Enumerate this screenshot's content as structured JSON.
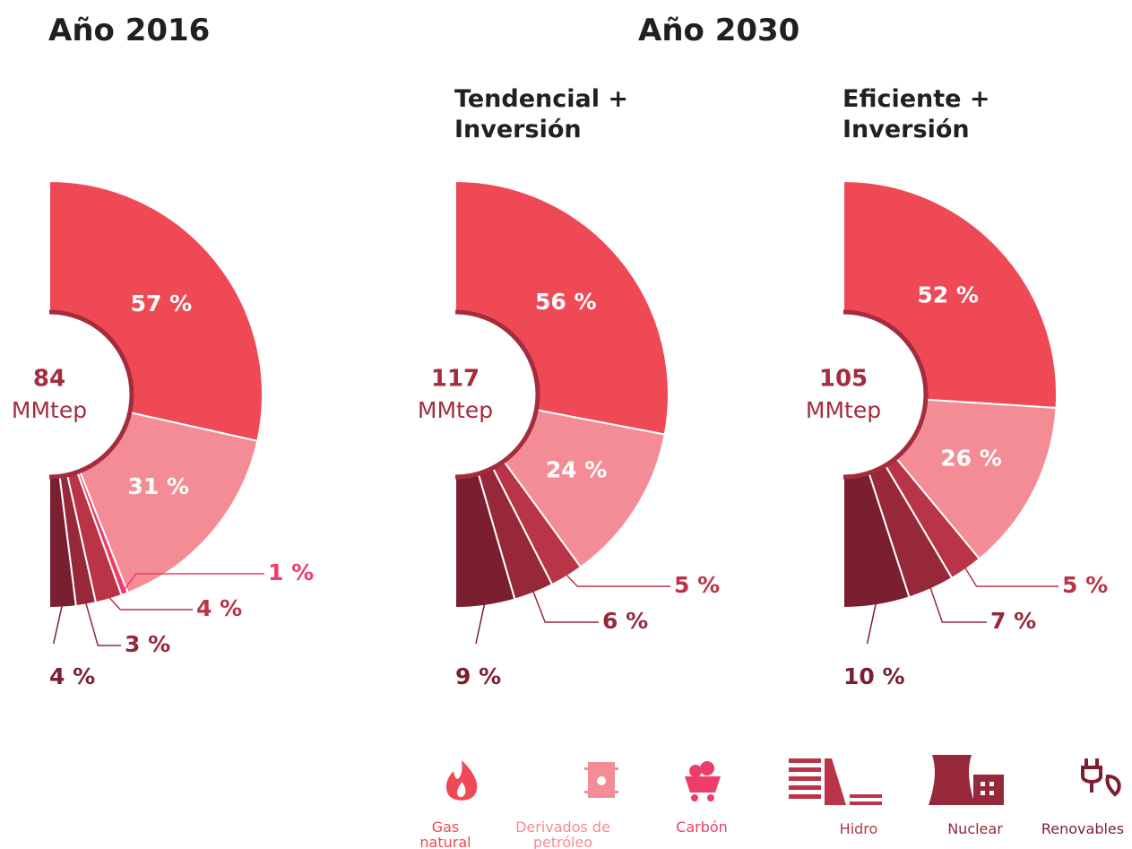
{
  "headings": [
    "Año 2016",
    "Año 2030"
  ],
  "legend": [
    {
      "label": "Gas natural",
      "color": "#ef4955"
    },
    {
      "label": "Derivados de petróleo",
      "color": "#f48c95"
    },
    {
      "label": "Carbón",
      "color": "#ee3d6a"
    },
    {
      "label": "Hidro",
      "color": "#b83446"
    },
    {
      "label": "Nuclear",
      "color": "#96283a"
    },
    {
      "label": "Renovables",
      "color": "#7a1f2f"
    }
  ],
  "chart_data": [
    {
      "type": "pie",
      "total": 84,
      "total_unit": "MMtep",
      "values": [
        57,
        31,
        1,
        4,
        3,
        4
      ],
      "value_labels": [
        "57 %",
        "31 %",
        "1 %",
        "4 %",
        "3 %",
        "4 %"
      ],
      "colors": [
        "#ef4955",
        "#f48c95",
        "#ee3d6a",
        "#b83446",
        "#96283a",
        "#7a1f2f"
      ]
    },
    {
      "type": "pie",
      "title": "Tendencial + Inversión",
      "total": 117,
      "total_unit": "MMtep",
      "values": [
        56,
        24,
        5,
        6,
        9
      ],
      "value_labels": [
        "56 %",
        "24 %",
        "5 %",
        "6 %",
        "9 %"
      ],
      "colors": [
        "#ef4955",
        "#f48c95",
        "#b83446",
        "#96283a",
        "#7a1f2f"
      ]
    },
    {
      "type": "pie",
      "title": "Eficiente + Inversión",
      "total": 105,
      "total_unit": "MMtep",
      "values": [
        52,
        26,
        5,
        7,
        10
      ],
      "value_labels": [
        "52 %",
        "26 %",
        "5 %",
        "7 %",
        "10 %"
      ],
      "colors": [
        "#ef4955",
        "#f48c95",
        "#b83446",
        "#96283a",
        "#7a1f2f"
      ]
    }
  ]
}
